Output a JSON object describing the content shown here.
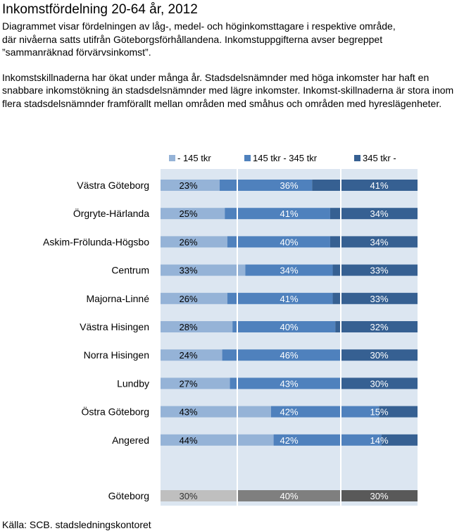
{
  "title": "Inkomstfördelning 20-64 år, 2012",
  "description": [
    "Diagrammet visar fördelningen av låg-, medel- och höginkomsttagare i respektive område,\ndär nivåerna satts utifrån Göteborgsförhållandena. Inkomstuppgifterna avser  begreppet\n ”sammanräknad förvärvsinkomst”.",
    "Inkomstskillnaderna har ökat under många år. Stadsdelsnämnder med höga inkomster har haft en snabbare inkomstökning än stadsdelsnämnder med lägre inkomster. Inkomst-skillnaderna är stora inom flera stadsdelsnämnder framförallt mellan områden med småhus och områden med hyreslägenheter."
  ],
  "source": "Källa: SCB. stadsledningskontoret",
  "colors": {
    "low": "#95B3D7",
    "mid": "#4F81BD",
    "high": "#366092",
    "total_low": "#BFBFBF",
    "total_mid": "#7F7F7F",
    "total_high": "#595959",
    "plot_bg": "#DCE6F1",
    "gap": "#ffffff"
  },
  "chart_data": {
    "type": "bar",
    "orientation": "horizontal",
    "stacked": true,
    "legend_position": "top",
    "categories": [
      "Västra Göteborg",
      "Örgryte-Härlanda",
      "Askim-Frölunda-Högsbo",
      "Centrum",
      "Majorna-Linné",
      "Västra Hisingen",
      "Norra Hisingen",
      "Lundby",
      "Östra Göteborg",
      "Angered"
    ],
    "series": [
      {
        "name": "- 145 tkr",
        "values": [
          23,
          25,
          26,
          33,
          26,
          28,
          24,
          27,
          43,
          44
        ],
        "labels": [
          "23%",
          "25%",
          "26%",
          "33%",
          "26%",
          "28%",
          "24%",
          "27%",
          "43%",
          "44%"
        ]
      },
      {
        "name": "145 tkr - 345 tkr",
        "values": [
          36,
          41,
          40,
          34,
          41,
          40,
          46,
          43,
          42,
          42
        ],
        "labels": [
          "36%",
          "41%",
          "40%",
          "34%",
          "41%",
          "40%",
          "46%",
          "43%",
          "42%",
          "42%"
        ]
      },
      {
        "name": "345 tkr -",
        "values": [
          41,
          34,
          34,
          33,
          33,
          32,
          30,
          30,
          15,
          14
        ],
        "labels": [
          "41%",
          "34%",
          "34%",
          "33%",
          "33%",
          "32%",
          "30%",
          "30%",
          "15%",
          "14%"
        ]
      }
    ],
    "total": {
      "category": "Göteborg",
      "values": [
        30,
        40,
        30
      ],
      "labels": [
        "30%",
        "40%",
        "30%"
      ]
    },
    "xlim": [
      0,
      100
    ]
  }
}
